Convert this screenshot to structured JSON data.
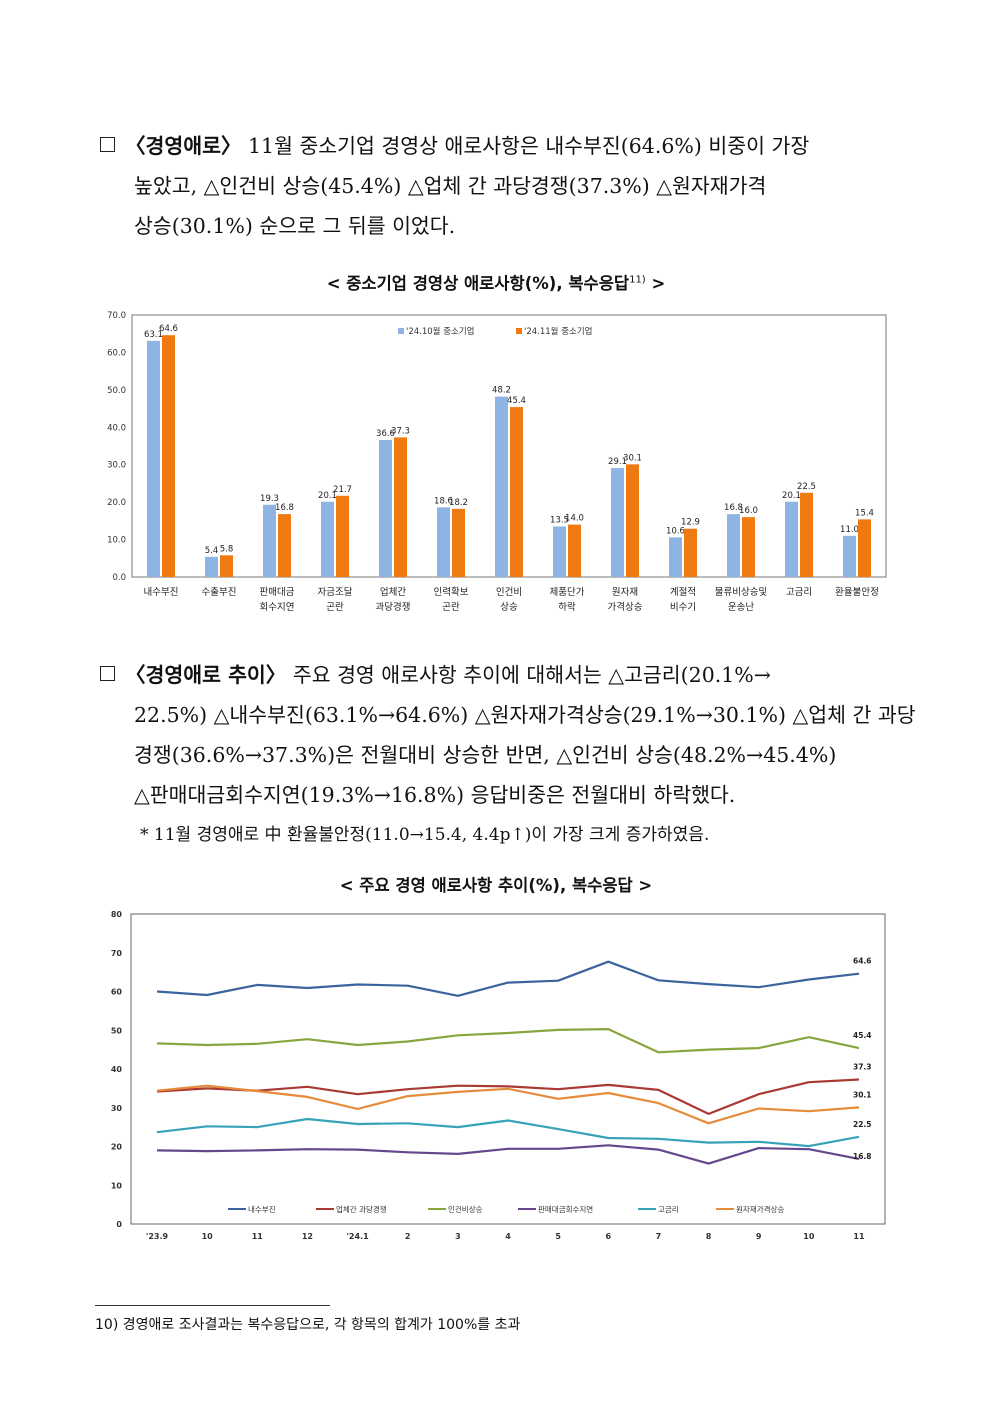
{
  "paragraph1": {
    "line1_keyword": "〈경영애로〉",
    "line1_text": "11월 중소기업 경영상 애로사항은 내수부진(64.6%) 비중이 가장",
    "line2": "높았고, △인건비 상승(45.4%) △업체 간 과당경쟁(37.3%) △원자재가격",
    "line3": "상승(30.1%) 순으로 그 뒤를 이었다."
  },
  "chart1_caption": {
    "text": "< 중소기업 경영상 애로사항(%), 복수응답",
    "sup": "11)",
    "close": ">"
  },
  "paragraph2": {
    "line1_keyword": "〈경영애로 추이〉",
    "line1_text": "주요 경영 애로사항 추이에 대해서는 △고금리(20.1%→",
    "line2": "22.5%) △내수부진(63.1%→64.6%) △원자재가격상승(29.1%→30.1%) △업체 간 과당",
    "line3": "경쟁(36.6%→37.3%)은 전월대비 상승한 반면, △인건비 상승(48.2%→45.4%)",
    "line4": "△판매대금회수지연(19.3%→16.8%) 응답비중은 전월대비 하락했다.",
    "note": "* 11월 경영애로 中 환율불안정(11.0→15.4, 4.4p↑)이 가장 크게 증가하였음."
  },
  "chart2_caption": {
    "text": "< 주요 경영 애로사항 추이(%), 복수응답 >"
  },
  "footnote": "10) 경영애로 조사결과는 복수응답으로, 각 항목의 합계가 100%를 초과",
  "colors": {
    "oct": "#8EB4E3",
    "nov": "#F07A12",
    "s1": "#3A649B",
    "s2": "#A83A32",
    "s3": "#87A63F",
    "s4": "#66478D",
    "s5": "#37A3B8",
    "s6": "#E68B3A"
  },
  "chart_data": [
    {
      "type": "bar",
      "ylim": [
        0,
        70
      ],
      "yticks": [
        "0.0",
        "10.0",
        "20.0",
        "30.0",
        "40.0",
        "50.0",
        "60.0",
        "70.0"
      ],
      "categories": [
        [
          "내수부진"
        ],
        [
          "수출부진"
        ],
        [
          "판매대금",
          "회수지연"
        ],
        [
          "자금조달",
          "곤란"
        ],
        [
          "업체간",
          "과당경쟁"
        ],
        [
          "인력확보",
          "곤란"
        ],
        [
          "인건비",
          "상승"
        ],
        [
          "제품단가",
          "하락"
        ],
        [
          "원자재",
          "가격상승"
        ],
        [
          "계절적",
          "비수기"
        ],
        [
          "물류비상승및",
          "운송난"
        ],
        [
          "고금리"
        ],
        [
          "환율불안정"
        ]
      ],
      "series": [
        {
          "name": "'24.10월 중소기업",
          "values": [
            63.1,
            5.4,
            19.3,
            20.1,
            36.6,
            18.6,
            48.2,
            13.5,
            29.1,
            10.6,
            16.8,
            20.1,
            11.0
          ]
        },
        {
          "name": "'24.11월 중소기업",
          "values": [
            64.6,
            5.8,
            16.8,
            21.7,
            37.3,
            18.2,
            45.4,
            14.0,
            30.1,
            12.9,
            16.0,
            22.5,
            15.4
          ]
        }
      ]
    },
    {
      "type": "line",
      "ylim": [
        0,
        80
      ],
      "yticks": [
        "0",
        "10",
        "20",
        "30",
        "40",
        "50",
        "60",
        "70",
        "80"
      ],
      "x": [
        "'23.9",
        "10",
        "11",
        "12",
        "'24.1",
        "2",
        "3",
        "4",
        "5",
        "6",
        "7",
        "8",
        "9",
        "10",
        "11"
      ],
      "series": [
        {
          "name": "내수부진",
          "values": [
            60.0,
            59.1,
            61.7,
            60.9,
            61.8,
            61.5,
            58.9,
            62.3,
            62.8,
            67.7,
            62.9,
            61.9,
            61.1,
            63.1,
            64.6
          ],
          "last_label": "64.6"
        },
        {
          "name": "업체간 과당경쟁",
          "values": [
            34.2,
            35.0,
            34.4,
            35.4,
            33.5,
            34.8,
            35.7,
            35.5,
            34.8,
            35.9,
            34.6,
            28.4,
            33.5,
            36.6,
            37.3
          ],
          "last_label": "37.3"
        },
        {
          "name": "인건비상승",
          "values": [
            46.6,
            46.2,
            46.5,
            47.7,
            46.2,
            47.1,
            48.7,
            49.3,
            50.1,
            50.3,
            44.3,
            45.0,
            45.4,
            48.2,
            45.4
          ],
          "last_label": "45.4"
        },
        {
          "name": "판매대금회수지연",
          "values": [
            19.0,
            18.8,
            19.0,
            19.3,
            19.2,
            18.5,
            18.1,
            19.4,
            19.4,
            20.3,
            19.2,
            15.6,
            19.6,
            19.3,
            16.8
          ],
          "last_label": "16.8"
        },
        {
          "name": "고금리",
          "values": [
            23.7,
            25.2,
            25.0,
            27.1,
            25.8,
            26.0,
            25.0,
            26.7,
            24.5,
            22.2,
            22.0,
            21.0,
            21.2,
            20.1,
            22.5
          ],
          "last_label": "22.5"
        },
        {
          "name": "원자재가격상승",
          "values": [
            34.4,
            35.7,
            34.3,
            32.8,
            29.7,
            33.0,
            34.1,
            34.9,
            32.3,
            33.8,
            31.2,
            26.0,
            29.8,
            29.1,
            30.1
          ],
          "last_label": "30.1"
        }
      ]
    }
  ]
}
